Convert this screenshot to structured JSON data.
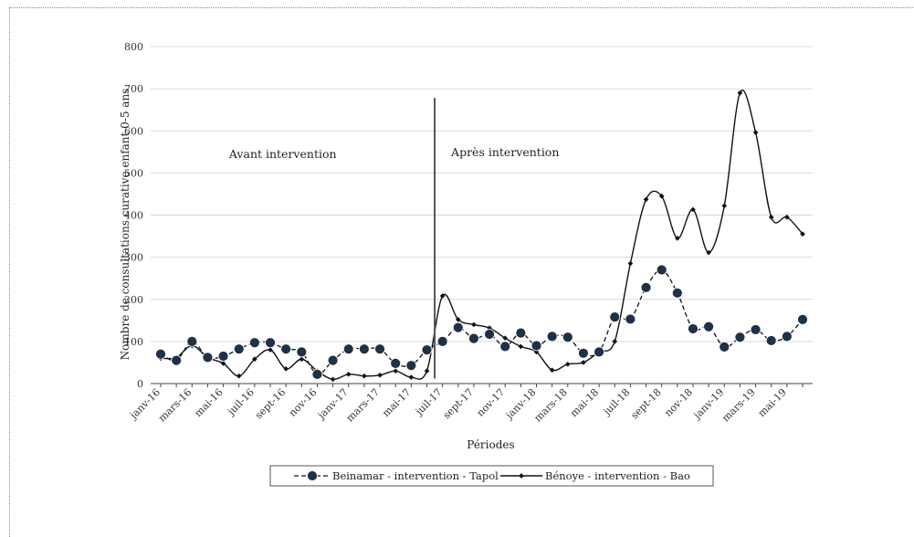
{
  "chart_data": {
    "type": "line",
    "xlabel": "Périodes",
    "ylabel": "Nombre de consultations curative enfant 0-5 ans",
    "ylim": [
      0,
      800
    ],
    "yticks": [
      0,
      100,
      200,
      300,
      400,
      500,
      600,
      700,
      800
    ],
    "grid": "horizontal",
    "legend_position": "bottom",
    "categories": [
      "janv-16",
      "févr-16",
      "mars-16",
      "avr-16",
      "mai-16",
      "juin-16",
      "juil-16",
      "août-16",
      "sept-16",
      "oct-16",
      "nov-16",
      "déc-16",
      "janv-17",
      "févr-17",
      "mars-17",
      "avr-17",
      "mai-17",
      "juin-17",
      "juil-17",
      "août-17",
      "sept-17",
      "oct-17",
      "nov-17",
      "déc-17",
      "janv-18",
      "févr-18",
      "mars-18",
      "avr-18",
      "mai-18",
      "juin-18",
      "juil-18",
      "août-18",
      "sept-18",
      "oct-18",
      "nov-18",
      "déc-18",
      "janv-19",
      "févr-19",
      "mars-19",
      "avr-19",
      "mai-19",
      "juin-19"
    ],
    "tick_labels": [
      "janv-16",
      "mars-16",
      "mai-16",
      "juil-16",
      "sept-16",
      "nov-16",
      "janv-17",
      "mars-17",
      "mai-17",
      "juil-17",
      "sept-17",
      "nov-17",
      "janv-18",
      "mars-18",
      "mai-18",
      "juil-18",
      "sept-18",
      "nov-18",
      "janv-19",
      "mars-19",
      "mai-19"
    ],
    "series": [
      {
        "name": "Beinamar - intervention - Tapol",
        "style": "dashed-circle",
        "values": [
          70,
          55,
          100,
          62,
          65,
          82,
          97,
          97,
          82,
          75,
          22,
          55,
          82,
          82,
          82,
          48,
          43,
          80,
          100,
          133,
          107,
          117,
          88,
          120,
          90,
          112,
          110,
          72,
          75,
          158,
          153,
          228,
          270,
          215,
          130,
          135,
          87,
          110,
          128,
          102,
          112,
          152
        ]
      },
      {
        "name": "Bénoye - intervention - Bao",
        "style": "solid-diamond",
        "values": [
          60,
          62,
          90,
          62,
          48,
          18,
          58,
          80,
          35,
          58,
          30,
          10,
          22,
          18,
          20,
          30,
          15,
          30,
          208,
          152,
          140,
          132,
          108,
          88,
          75,
          32,
          46,
          50,
          75,
          100,
          285,
          437,
          445,
          345,
          413,
          311,
          422,
          690,
          596,
          395,
          395,
          355
        ]
      }
    ],
    "annotations": [
      {
        "text": "Avant intervention"
      },
      {
        "text": "Après intervention"
      }
    ],
    "intervention_marker_after": "juin-17"
  }
}
